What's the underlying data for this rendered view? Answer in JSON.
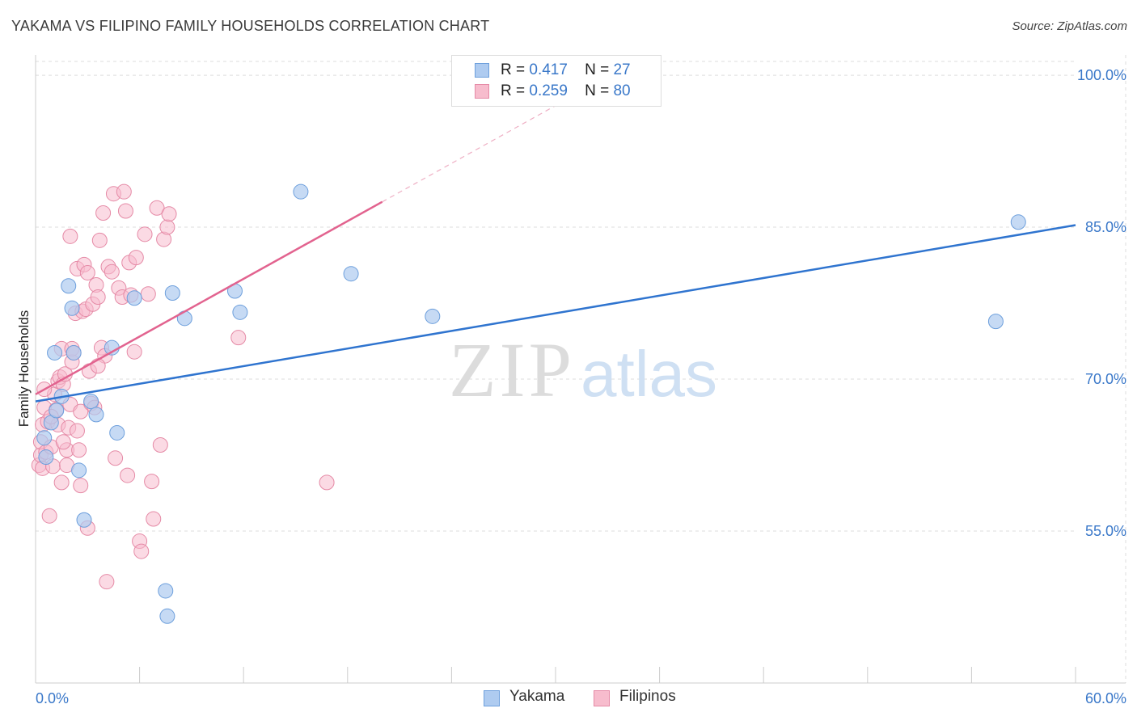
{
  "header": {
    "title": "YAKAMA VS FILIPINO FAMILY HOUSEHOLDS CORRELATION CHART",
    "source": "Source: ZipAtlas.com"
  },
  "legend": {
    "rows": [
      {
        "r_label": "R =",
        "r_value": "0.417",
        "n_label": "N =",
        "n_value": "27"
      },
      {
        "r_label": "R =",
        "r_value": "0.259",
        "n_label": "N =",
        "n_value": "80"
      }
    ]
  },
  "bottom_legend": {
    "items": [
      "Yakama",
      "Filipinos"
    ]
  },
  "watermark": {
    "zip": "ZIP",
    "atlas": "atlas"
  },
  "colors": {
    "yakama_fill": "#aecbf0",
    "yakama_stroke": "#6d9fdc",
    "yakama_line": "#2f74cf",
    "filipino_fill": "#f7bccd",
    "filipino_stroke": "#e58aa6",
    "filipino_line": "#e2638f",
    "tick_label": "#3a78c9",
    "grid": "#dddddd"
  },
  "chart_data": {
    "type": "scatter",
    "title": "YAKAMA VS FILIPINO FAMILY HOUSEHOLDS CORRELATION CHART",
    "xlabel": "",
    "ylabel": "Family Households",
    "xlim": [
      0,
      60
    ],
    "ylim": [
      40,
      102
    ],
    "x_tick_labels": [
      {
        "value": 0,
        "label": "0.0%"
      },
      {
        "value": 60,
        "label": "60.0%"
      }
    ],
    "y_tick_labels": [
      {
        "value": 100,
        "label": "100.0%"
      },
      {
        "value": 85,
        "label": "85.0%"
      },
      {
        "value": 70,
        "label": "70.0%"
      },
      {
        "value": 55,
        "label": "55.0%"
      }
    ],
    "x_minor_ticks": [
      0,
      6,
      12,
      18,
      24,
      30,
      36,
      42,
      48,
      54,
      60
    ],
    "series": [
      {
        "name": "Yakama",
        "R": 0.417,
        "N": 27,
        "trend": {
          "x0": 0,
          "y0": 67.8,
          "x1": 60,
          "y1": 85.2
        },
        "points": [
          [
            0.5,
            64.2
          ],
          [
            0.6,
            62.3
          ],
          [
            0.9,
            65.7
          ],
          [
            1.1,
            72.6
          ],
          [
            1.2,
            66.9
          ],
          [
            1.5,
            68.3
          ],
          [
            1.9,
            79.2
          ],
          [
            2.1,
            77.0
          ],
          [
            2.2,
            72.6
          ],
          [
            2.5,
            61.0
          ],
          [
            2.8,
            56.1
          ],
          [
            3.2,
            67.8
          ],
          [
            3.5,
            66.5
          ],
          [
            4.4,
            73.1
          ],
          [
            4.7,
            64.7
          ],
          [
            5.7,
            78.0
          ],
          [
            7.5,
            49.1
          ],
          [
            7.6,
            46.6
          ],
          [
            7.9,
            78.5
          ],
          [
            8.6,
            76.0
          ],
          [
            11.5,
            78.7
          ],
          [
            11.8,
            76.6
          ],
          [
            15.3,
            88.5
          ],
          [
            18.2,
            80.4
          ],
          [
            22.9,
            76.2
          ],
          [
            55.4,
            75.7
          ],
          [
            56.7,
            85.5
          ]
        ]
      },
      {
        "name": "Filipinos",
        "R": 0.259,
        "N": 80,
        "trend": {
          "x0": 0,
          "y0": 68.5,
          "x1": 20,
          "y1": 87.5
        },
        "trend_dashed": {
          "x0": 20,
          "y0": 87.5,
          "x1": 34,
          "y1": 100.8
        },
        "points": [
          [
            0.2,
            61.5
          ],
          [
            0.3,
            62.5
          ],
          [
            0.3,
            63.8
          ],
          [
            0.4,
            65.5
          ],
          [
            0.4,
            61.2
          ],
          [
            0.5,
            67.2
          ],
          [
            0.6,
            62.8
          ],
          [
            0.7,
            65.8
          ],
          [
            0.8,
            56.5
          ],
          [
            0.9,
            63.3
          ],
          [
            1.0,
            61.4
          ],
          [
            1.1,
            68.5
          ],
          [
            1.2,
            67.0
          ],
          [
            1.3,
            69.8
          ],
          [
            1.3,
            65.5
          ],
          [
            1.4,
            70.2
          ],
          [
            1.5,
            73.0
          ],
          [
            1.6,
            69.5
          ],
          [
            1.7,
            70.5
          ],
          [
            1.8,
            61.5
          ],
          [
            1.8,
            63.0
          ],
          [
            1.9,
            65.2
          ],
          [
            2.0,
            67.5
          ],
          [
            2.0,
            84.1
          ],
          [
            2.1,
            71.7
          ],
          [
            2.1,
            73.0
          ],
          [
            2.2,
            72.6
          ],
          [
            2.3,
            76.5
          ],
          [
            2.4,
            80.9
          ],
          [
            2.5,
            63.0
          ],
          [
            2.6,
            66.8
          ],
          [
            2.7,
            76.7
          ],
          [
            2.8,
            81.3
          ],
          [
            2.9,
            76.9
          ],
          [
            3.0,
            55.3
          ],
          [
            3.0,
            80.5
          ],
          [
            3.2,
            67.6
          ],
          [
            3.3,
            77.4
          ],
          [
            3.4,
            67.2
          ],
          [
            3.5,
            79.3
          ],
          [
            3.6,
            78.1
          ],
          [
            3.7,
            83.7
          ],
          [
            3.8,
            73.1
          ],
          [
            3.9,
            86.4
          ],
          [
            4.0,
            72.3
          ],
          [
            4.1,
            50.0
          ],
          [
            4.2,
            81.1
          ],
          [
            4.4,
            80.6
          ],
          [
            4.5,
            88.3
          ],
          [
            4.6,
            62.2
          ],
          [
            4.8,
            79.0
          ],
          [
            5.0,
            78.1
          ],
          [
            5.1,
            88.5
          ],
          [
            5.2,
            86.6
          ],
          [
            5.4,
            81.5
          ],
          [
            5.5,
            78.3
          ],
          [
            5.7,
            72.7
          ],
          [
            5.8,
            82.0
          ],
          [
            6.0,
            54.0
          ],
          [
            6.1,
            53.0
          ],
          [
            6.3,
            84.3
          ],
          [
            6.5,
            78.4
          ],
          [
            6.7,
            59.9
          ],
          [
            7.0,
            86.9
          ],
          [
            7.2,
            63.5
          ],
          [
            7.4,
            83.8
          ],
          [
            7.6,
            85.0
          ],
          [
            7.7,
            86.3
          ],
          [
            1.5,
            59.8
          ],
          [
            2.6,
            59.5
          ],
          [
            0.5,
            69.0
          ],
          [
            0.9,
            66.3
          ],
          [
            1.6,
            63.8
          ],
          [
            2.4,
            64.9
          ],
          [
            3.1,
            70.8
          ],
          [
            3.6,
            71.3
          ],
          [
            5.3,
            60.5
          ],
          [
            6.8,
            56.2
          ],
          [
            11.7,
            74.1
          ],
          [
            16.8,
            59.8
          ]
        ]
      }
    ]
  }
}
